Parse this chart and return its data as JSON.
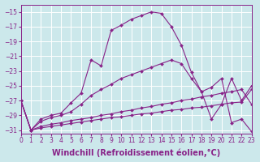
{
  "background_color": "#cce8eb",
  "grid_color": "#b0d4d8",
  "line_color": "#882288",
  "xlabel": "Windchill (Refroidissement éolien,°C)",
  "xlim": [
    0,
    23
  ],
  "ylim": [
    -31.5,
    -14.0
  ],
  "yticks": [
    -31,
    -29,
    -27,
    -25,
    -23,
    -21,
    -19,
    -17,
    -15
  ],
  "xticks": [
    0,
    1,
    2,
    3,
    4,
    5,
    6,
    7,
    8,
    9,
    10,
    11,
    12,
    13,
    14,
    15,
    16,
    17,
    18,
    19,
    20,
    21,
    22,
    23
  ],
  "series": [
    {
      "x": [
        0,
        1,
        2,
        3,
        4,
        5,
        6,
        7,
        8,
        9,
        10,
        11,
        12,
        13,
        14,
        15,
        16,
        17,
        18,
        19,
        20,
        21,
        22,
        23
      ],
      "y": [
        -27,
        -31,
        -29.5,
        -29.0,
        -28.7,
        -27.3,
        -26.0,
        -21.5,
        -22.3,
        -17.5,
        -16.8,
        -16.0,
        -15.5,
        -15.0,
        -15.2,
        -17.0,
        -19.5,
        -23.2,
        -25.8,
        -25.2,
        -24.0,
        -30.0,
        -29.5,
        -31.2
      ]
    },
    {
      "x": [
        0,
        1,
        2,
        3,
        4,
        5,
        6,
        7,
        8,
        9,
        10,
        11,
        12,
        13,
        14,
        15,
        16,
        17,
        18,
        19,
        20,
        21,
        22,
        23
      ],
      "y": [
        -27,
        -31,
        -29.8,
        -29.3,
        -29.0,
        -28.5,
        -27.5,
        -26.3,
        -25.5,
        -24.8,
        -24.0,
        -23.5,
        -23.0,
        -22.5,
        -22.0,
        -21.5,
        -22.0,
        -24.0,
        -25.8,
        -29.5,
        -27.5,
        -24.0,
        -27.0,
        -25.0
      ]
    },
    {
      "x": [
        0,
        1,
        2,
        3,
        4,
        5,
        6,
        7,
        8,
        9,
        10,
        11,
        12,
        13,
        14,
        15,
        16,
        17,
        18,
        19,
        20,
        21,
        22,
        23
      ],
      "y": [
        -27,
        -31,
        -30.5,
        -30.2,
        -30.0,
        -29.7,
        -29.5,
        -29.3,
        -29.0,
        -28.8,
        -28.5,
        -28.3,
        -28.0,
        -27.8,
        -27.5,
        -27.3,
        -27.0,
        -26.8,
        -26.5,
        -26.3,
        -26.0,
        -25.8,
        -25.5,
        -27.5
      ]
    },
    {
      "x": [
        0,
        1,
        2,
        3,
        4,
        5,
        6,
        7,
        8,
        9,
        10,
        11,
        12,
        13,
        14,
        15,
        16,
        17,
        18,
        19,
        20,
        21,
        22,
        23
      ],
      "y": [
        -27,
        -31,
        -30.7,
        -30.5,
        -30.3,
        -30.1,
        -29.9,
        -29.7,
        -29.5,
        -29.3,
        -29.2,
        -29.0,
        -28.8,
        -28.7,
        -28.5,
        -28.3,
        -28.2,
        -28.0,
        -27.9,
        -27.7,
        -27.5,
        -27.3,
        -27.2,
        -25.5
      ]
    }
  ],
  "marker": "D",
  "marker_size": 2.0,
  "line_width": 0.8,
  "xlabel_fontsize": 7,
  "tick_fontsize": 5.5
}
